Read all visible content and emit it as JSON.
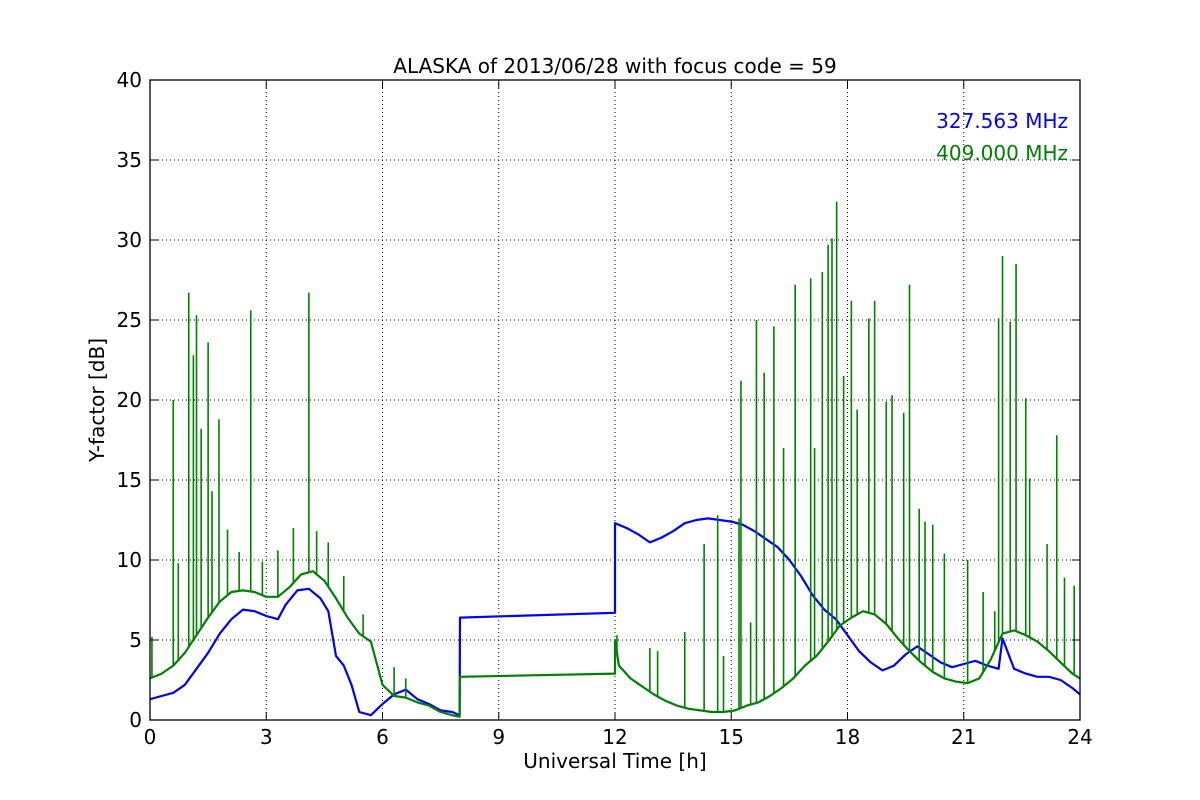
{
  "chart_data": {
    "type": "line",
    "title": "ALASKA of 2013/06/28 with focus code = 59",
    "xlabel": "Universal Time [h]",
    "ylabel": "Y-factor [dB]",
    "xlim": [
      0,
      24
    ],
    "ylim": [
      0,
      40
    ],
    "xticks": [
      0,
      3,
      6,
      9,
      12,
      15,
      18,
      21,
      24
    ],
    "yticks": [
      0,
      5,
      10,
      15,
      20,
      25,
      30,
      35,
      40
    ],
    "grid": true,
    "legend_position": "top-right",
    "series": [
      {
        "name": "327.563 MHz",
        "color": "#0000ff",
        "points": [
          [
            0,
            1.3
          ],
          [
            0.3,
            1.5
          ],
          [
            0.6,
            1.7
          ],
          [
            0.9,
            2.2
          ],
          [
            1.2,
            3.2
          ],
          [
            1.5,
            4.2
          ],
          [
            1.8,
            5.4
          ],
          [
            2.1,
            6.3
          ],
          [
            2.4,
            6.9
          ],
          [
            2.7,
            6.8
          ],
          [
            3.0,
            6.5
          ],
          [
            3.3,
            6.3
          ],
          [
            3.5,
            7.2
          ],
          [
            3.8,
            8.1
          ],
          [
            4.1,
            8.2
          ],
          [
            4.4,
            7.6
          ],
          [
            4.6,
            6.8
          ],
          [
            4.8,
            4.0
          ],
          [
            5.0,
            3.4
          ],
          [
            5.2,
            2.2
          ],
          [
            5.4,
            0.5
          ],
          [
            5.7,
            0.3
          ],
          [
            6.0,
            1.0
          ],
          [
            6.3,
            1.6
          ],
          [
            6.6,
            1.9
          ],
          [
            6.9,
            1.3
          ],
          [
            7.2,
            1.0
          ],
          [
            7.5,
            0.6
          ],
          [
            7.8,
            0.5
          ],
          [
            7.99,
            0.3
          ],
          [
            8.0,
            6.4
          ],
          [
            12.0,
            6.7
          ],
          [
            12.0,
            12.3
          ],
          [
            12.3,
            12.0
          ],
          [
            12.6,
            11.6
          ],
          [
            12.9,
            11.1
          ],
          [
            13.2,
            11.4
          ],
          [
            13.5,
            11.8
          ],
          [
            13.8,
            12.3
          ],
          [
            14.1,
            12.5
          ],
          [
            14.4,
            12.6
          ],
          [
            14.7,
            12.5
          ],
          [
            15.0,
            12.4
          ],
          [
            15.3,
            12.2
          ],
          [
            15.6,
            11.8
          ],
          [
            15.9,
            11.3
          ],
          [
            16.2,
            10.8
          ],
          [
            16.5,
            10.0
          ],
          [
            16.8,
            9.0
          ],
          [
            17.1,
            7.8
          ],
          [
            17.4,
            6.9
          ],
          [
            17.7,
            6.3
          ],
          [
            18.0,
            5.3
          ],
          [
            18.3,
            4.3
          ],
          [
            18.6,
            3.6
          ],
          [
            18.9,
            3.1
          ],
          [
            19.2,
            3.4
          ],
          [
            19.5,
            4.1
          ],
          [
            19.8,
            4.6
          ],
          [
            20.1,
            4.1
          ],
          [
            20.4,
            3.6
          ],
          [
            20.7,
            3.3
          ],
          [
            21.0,
            3.5
          ],
          [
            21.3,
            3.7
          ],
          [
            21.6,
            3.4
          ],
          [
            21.9,
            3.2
          ],
          [
            22.0,
            5.1
          ],
          [
            22.3,
            3.2
          ],
          [
            22.6,
            2.9
          ],
          [
            22.9,
            2.7
          ],
          [
            23.2,
            2.7
          ],
          [
            23.5,
            2.5
          ],
          [
            23.8,
            2.0
          ],
          [
            24.0,
            1.6
          ]
        ]
      },
      {
        "name": "409.000 MHz",
        "color": "#008000",
        "points": [
          [
            0,
            2.6
          ],
          [
            0.3,
            2.9
          ],
          [
            0.6,
            3.4
          ],
          [
            0.9,
            4.2
          ],
          [
            1.2,
            5.3
          ],
          [
            1.5,
            6.4
          ],
          [
            1.8,
            7.4
          ],
          [
            2.1,
            8.0
          ],
          [
            2.4,
            8.1
          ],
          [
            2.7,
            8.0
          ],
          [
            3.0,
            7.7
          ],
          [
            3.3,
            7.7
          ],
          [
            3.6,
            8.3
          ],
          [
            3.9,
            9.1
          ],
          [
            4.2,
            9.3
          ],
          [
            4.5,
            8.7
          ],
          [
            4.8,
            7.6
          ],
          [
            5.1,
            6.4
          ],
          [
            5.4,
            5.4
          ],
          [
            5.7,
            4.9
          ],
          [
            6.0,
            2.2
          ],
          [
            6.3,
            1.5
          ],
          [
            6.6,
            1.4
          ],
          [
            6.9,
            1.1
          ],
          [
            7.2,
            0.9
          ],
          [
            7.5,
            0.5
          ],
          [
            7.8,
            0.3
          ],
          [
            7.99,
            0.2
          ],
          [
            8.0,
            2.7
          ],
          [
            12.0,
            2.9
          ],
          [
            12.0,
            5.0
          ],
          [
            12.1,
            3.4
          ],
          [
            12.4,
            2.6
          ],
          [
            12.7,
            2.1
          ],
          [
            13.0,
            1.6
          ],
          [
            13.3,
            1.2
          ],
          [
            13.6,
            0.9
          ],
          [
            13.9,
            0.7
          ],
          [
            14.2,
            0.6
          ],
          [
            14.5,
            0.5
          ],
          [
            14.8,
            0.5
          ],
          [
            15.1,
            0.6
          ],
          [
            15.4,
            0.9
          ],
          [
            15.7,
            1.1
          ],
          [
            16.0,
            1.5
          ],
          [
            16.3,
            2.0
          ],
          [
            16.6,
            2.6
          ],
          [
            16.9,
            3.4
          ],
          [
            17.2,
            4.0
          ],
          [
            17.5,
            4.9
          ],
          [
            17.8,
            5.9
          ],
          [
            18.1,
            6.4
          ],
          [
            18.4,
            6.8
          ],
          [
            18.7,
            6.6
          ],
          [
            19.0,
            6.0
          ],
          [
            19.3,
            5.1
          ],
          [
            19.6,
            4.3
          ],
          [
            19.9,
            3.6
          ],
          [
            20.2,
            3.0
          ],
          [
            20.5,
            2.6
          ],
          [
            20.8,
            2.4
          ],
          [
            21.1,
            2.3
          ],
          [
            21.4,
            2.6
          ],
          [
            21.7,
            3.8
          ],
          [
            22.0,
            5.4
          ],
          [
            22.3,
            5.6
          ],
          [
            22.6,
            5.3
          ],
          [
            22.9,
            4.9
          ],
          [
            23.2,
            4.3
          ],
          [
            23.5,
            3.6
          ],
          [
            23.8,
            2.9
          ],
          [
            24.0,
            2.6
          ]
        ],
        "spikes": [
          [
            0.05,
            5.2
          ],
          [
            0.6,
            20.0
          ],
          [
            0.73,
            9.8
          ],
          [
            1.0,
            26.7
          ],
          [
            1.12,
            22.8
          ],
          [
            1.2,
            25.3
          ],
          [
            1.32,
            18.2
          ],
          [
            1.5,
            23.6
          ],
          [
            1.6,
            14.3
          ],
          [
            1.78,
            18.8
          ],
          [
            2.0,
            11.9
          ],
          [
            2.3,
            10.5
          ],
          [
            2.6,
            25.6
          ],
          [
            2.9,
            9.9
          ],
          [
            3.3,
            10.6
          ],
          [
            3.7,
            12.0
          ],
          [
            4.1,
            26.7
          ],
          [
            4.3,
            11.8
          ],
          [
            4.6,
            11.1
          ],
          [
            5.0,
            9.0
          ],
          [
            5.5,
            6.6
          ],
          [
            6.3,
            3.3
          ],
          [
            6.6,
            2.6
          ],
          [
            12.05,
            5.3
          ],
          [
            12.9,
            4.5
          ],
          [
            13.1,
            4.3
          ],
          [
            13.8,
            5.5
          ],
          [
            14.3,
            11.0
          ],
          [
            14.65,
            12.8
          ],
          [
            14.8,
            4.0
          ],
          [
            15.2,
            12.6
          ],
          [
            15.25,
            21.2
          ],
          [
            15.5,
            6.1
          ],
          [
            15.65,
            25.0
          ],
          [
            15.85,
            21.7
          ],
          [
            16.1,
            24.6
          ],
          [
            16.35,
            17.0
          ],
          [
            16.65,
            27.2
          ],
          [
            17.05,
            27.6
          ],
          [
            17.15,
            17.0
          ],
          [
            17.35,
            28.0
          ],
          [
            17.5,
            29.7
          ],
          [
            17.6,
            30.1
          ],
          [
            17.72,
            32.4
          ],
          [
            17.9,
            21.5
          ],
          [
            18.1,
            26.2
          ],
          [
            18.25,
            19.4
          ],
          [
            18.55,
            25.1
          ],
          [
            18.7,
            26.2
          ],
          [
            19.0,
            19.9
          ],
          [
            19.15,
            20.3
          ],
          [
            19.45,
            19.2
          ],
          [
            19.6,
            27.2
          ],
          [
            19.85,
            13.2
          ],
          [
            20.0,
            12.4
          ],
          [
            20.2,
            12.2
          ],
          [
            20.5,
            10.4
          ],
          [
            21.1,
            10.0
          ],
          [
            21.5,
            8.0
          ],
          [
            21.8,
            6.8
          ],
          [
            21.9,
            25.1
          ],
          [
            22.0,
            29.0
          ],
          [
            22.2,
            24.9
          ],
          [
            22.35,
            28.5
          ],
          [
            22.6,
            20.1
          ],
          [
            22.7,
            15.1
          ],
          [
            23.15,
            11.0
          ],
          [
            23.4,
            17.8
          ],
          [
            23.6,
            8.9
          ],
          [
            23.85,
            8.4
          ]
        ]
      }
    ]
  }
}
